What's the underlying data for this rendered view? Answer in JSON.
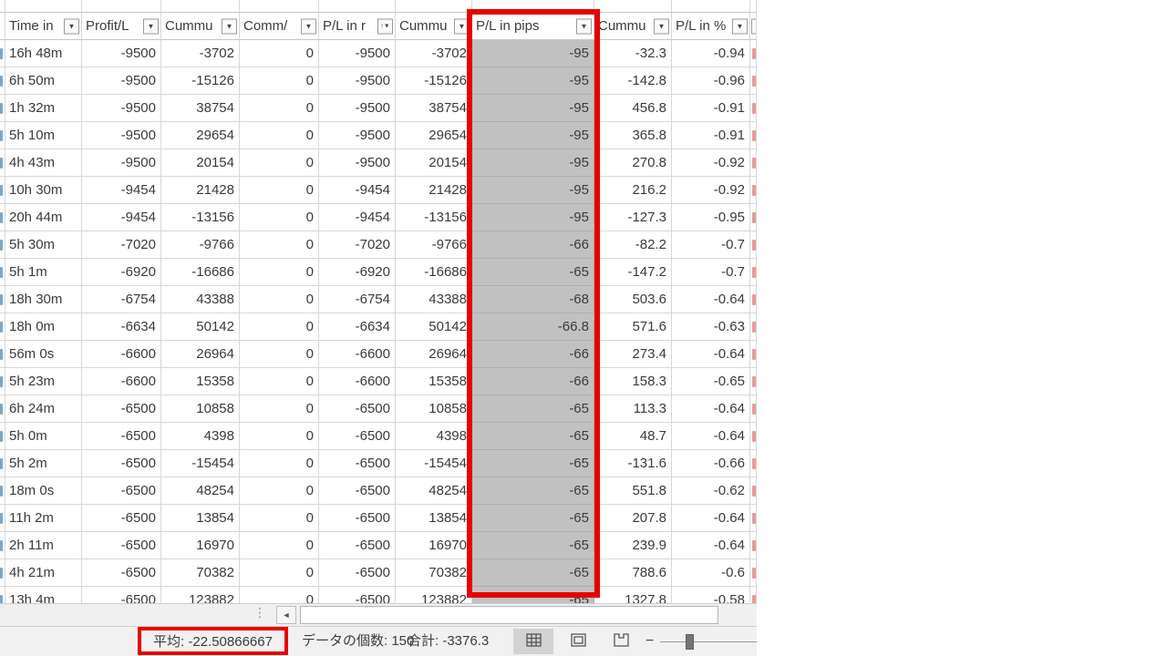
{
  "table": {
    "columns": [
      {
        "label": "Time in",
        "filter": "dropdown"
      },
      {
        "label": "Profit/L",
        "filter": "dropdown"
      },
      {
        "label": "Cummu",
        "filter": "dropdown"
      },
      {
        "label": "Comm/",
        "filter": "dropdown"
      },
      {
        "label": "P/L in r",
        "filter": "dropdown-sorted"
      },
      {
        "label": "Cummu",
        "filter": "dropdown"
      },
      {
        "label": "P/L in pips",
        "filter": "dropdown",
        "highlighted": true
      },
      {
        "label": "Cummu",
        "filter": "dropdown"
      },
      {
        "label": "P/L in %",
        "filter": "dropdown"
      }
    ],
    "rows": [
      [
        "16h 48m",
        "-9500",
        "-3702",
        "0",
        "-9500",
        "-3702",
        "-95",
        "-32.3",
        "-0.94"
      ],
      [
        "6h 50m",
        "-9500",
        "-15126",
        "0",
        "-9500",
        "-15126",
        "-95",
        "-142.8",
        "-0.96"
      ],
      [
        "1h 32m",
        "-9500",
        "38754",
        "0",
        "-9500",
        "38754",
        "-95",
        "456.8",
        "-0.91"
      ],
      [
        "5h 10m",
        "-9500",
        "29654",
        "0",
        "-9500",
        "29654",
        "-95",
        "365.8",
        "-0.91"
      ],
      [
        "4h 43m",
        "-9500",
        "20154",
        "0",
        "-9500",
        "20154",
        "-95",
        "270.8",
        "-0.92"
      ],
      [
        "10h 30m",
        "-9454",
        "21428",
        "0",
        "-9454",
        "21428",
        "-95",
        "216.2",
        "-0.92"
      ],
      [
        "20h 44m",
        "-9454",
        "-13156",
        "0",
        "-9454",
        "-13156",
        "-95",
        "-127.3",
        "-0.95"
      ],
      [
        "5h 30m",
        "-7020",
        "-9766",
        "0",
        "-7020",
        "-9766",
        "-66",
        "-82.2",
        "-0.7"
      ],
      [
        "5h 1m",
        "-6920",
        "-16686",
        "0",
        "-6920",
        "-16686",
        "-65",
        "-147.2",
        "-0.7"
      ],
      [
        "18h 30m",
        "-6754",
        "43388",
        "0",
        "-6754",
        "43388",
        "-68",
        "503.6",
        "-0.64"
      ],
      [
        "18h 0m",
        "-6634",
        "50142",
        "0",
        "-6634",
        "50142",
        "-66.8",
        "571.6",
        "-0.63"
      ],
      [
        "56m 0s",
        "-6600",
        "26964",
        "0",
        "-6600",
        "26964",
        "-66",
        "273.4",
        "-0.64"
      ],
      [
        "5h 23m",
        "-6600",
        "15358",
        "0",
        "-6600",
        "15358",
        "-66",
        "158.3",
        "-0.65"
      ],
      [
        "6h 24m",
        "-6500",
        "10858",
        "0",
        "-6500",
        "10858",
        "-65",
        "113.3",
        "-0.64"
      ],
      [
        "5h 0m",
        "-6500",
        "4398",
        "0",
        "-6500",
        "4398",
        "-65",
        "48.7",
        "-0.64"
      ],
      [
        "5h 2m",
        "-6500",
        "-15454",
        "0",
        "-6500",
        "-15454",
        "-65",
        "-131.6",
        "-0.66"
      ],
      [
        "18m 0s",
        "-6500",
        "48254",
        "0",
        "-6500",
        "48254",
        "-65",
        "551.8",
        "-0.62"
      ],
      [
        "11h 2m",
        "-6500",
        "13854",
        "0",
        "-6500",
        "13854",
        "-65",
        "207.8",
        "-0.64"
      ],
      [
        "2h 11m",
        "-6500",
        "16970",
        "0",
        "-6500",
        "16970",
        "-65",
        "239.9",
        "-0.64"
      ],
      [
        "4h 21m",
        "-6500",
        "70382",
        "0",
        "-6500",
        "70382",
        "-65",
        "788.6",
        "-0.6"
      ],
      [
        "13h 4m",
        "-6500",
        "123882",
        "0",
        "-6500",
        "123882",
        "-65",
        "1327.8",
        "-0.58"
      ]
    ]
  },
  "status_bar": {
    "average": "平均: -22.50866667",
    "count": "データの個数: 150",
    "sum": "合計: -3376.3"
  },
  "icons": {
    "dropdown": "▼",
    "sort_ascending": "↑",
    "scroll_left": "◄",
    "grip_dots": "⋮",
    "zoom_out": "−"
  },
  "colors": {
    "annotation_red": "#e60000",
    "selection_gray": "#c1c1c1",
    "grid_line": "#d8d8d8",
    "text": "#3a3a3a",
    "bar_background": "#f1f1f1"
  }
}
